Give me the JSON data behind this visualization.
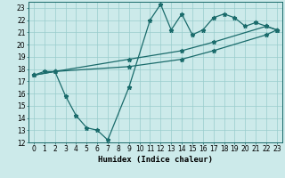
{
  "xlabel": "Humidex (Indice chaleur)",
  "background_color": "#cceaea",
  "grid_color": "#99cccc",
  "line_color": "#1a6b6b",
  "xlim": [
    -0.5,
    23.5
  ],
  "ylim": [
    12,
    23.5
  ],
  "xticks": [
    0,
    1,
    2,
    3,
    4,
    5,
    6,
    7,
    8,
    9,
    10,
    11,
    12,
    13,
    14,
    15,
    16,
    17,
    18,
    19,
    20,
    21,
    22,
    23
  ],
  "yticks": [
    12,
    13,
    14,
    15,
    16,
    17,
    18,
    19,
    20,
    21,
    22,
    23
  ],
  "line1_x": [
    0,
    1,
    2,
    3,
    4,
    5,
    6,
    7,
    9,
    11,
    12,
    13,
    14,
    15,
    16,
    17,
    18,
    19,
    20,
    21,
    22,
    23
  ],
  "line1_y": [
    17.5,
    17.8,
    17.8,
    15.8,
    14.2,
    13.2,
    13.0,
    12.2,
    16.5,
    22.0,
    23.3,
    21.2,
    22.5,
    20.8,
    21.2,
    22.2,
    22.5,
    22.2,
    21.5,
    21.8,
    21.5,
    21.2
  ],
  "line2_x": [
    0,
    2,
    9,
    14,
    17,
    22,
    23
  ],
  "line2_y": [
    17.5,
    17.8,
    18.8,
    19.5,
    20.2,
    21.5,
    21.2
  ],
  "line3_x": [
    0,
    2,
    9,
    14,
    17,
    22,
    23
  ],
  "line3_y": [
    17.5,
    17.8,
    18.2,
    18.8,
    19.5,
    20.8,
    21.2
  ],
  "marker_size": 3.5,
  "linewidth": 0.9,
  "tick_fontsize": 5.5,
  "xlabel_fontsize": 6.5
}
